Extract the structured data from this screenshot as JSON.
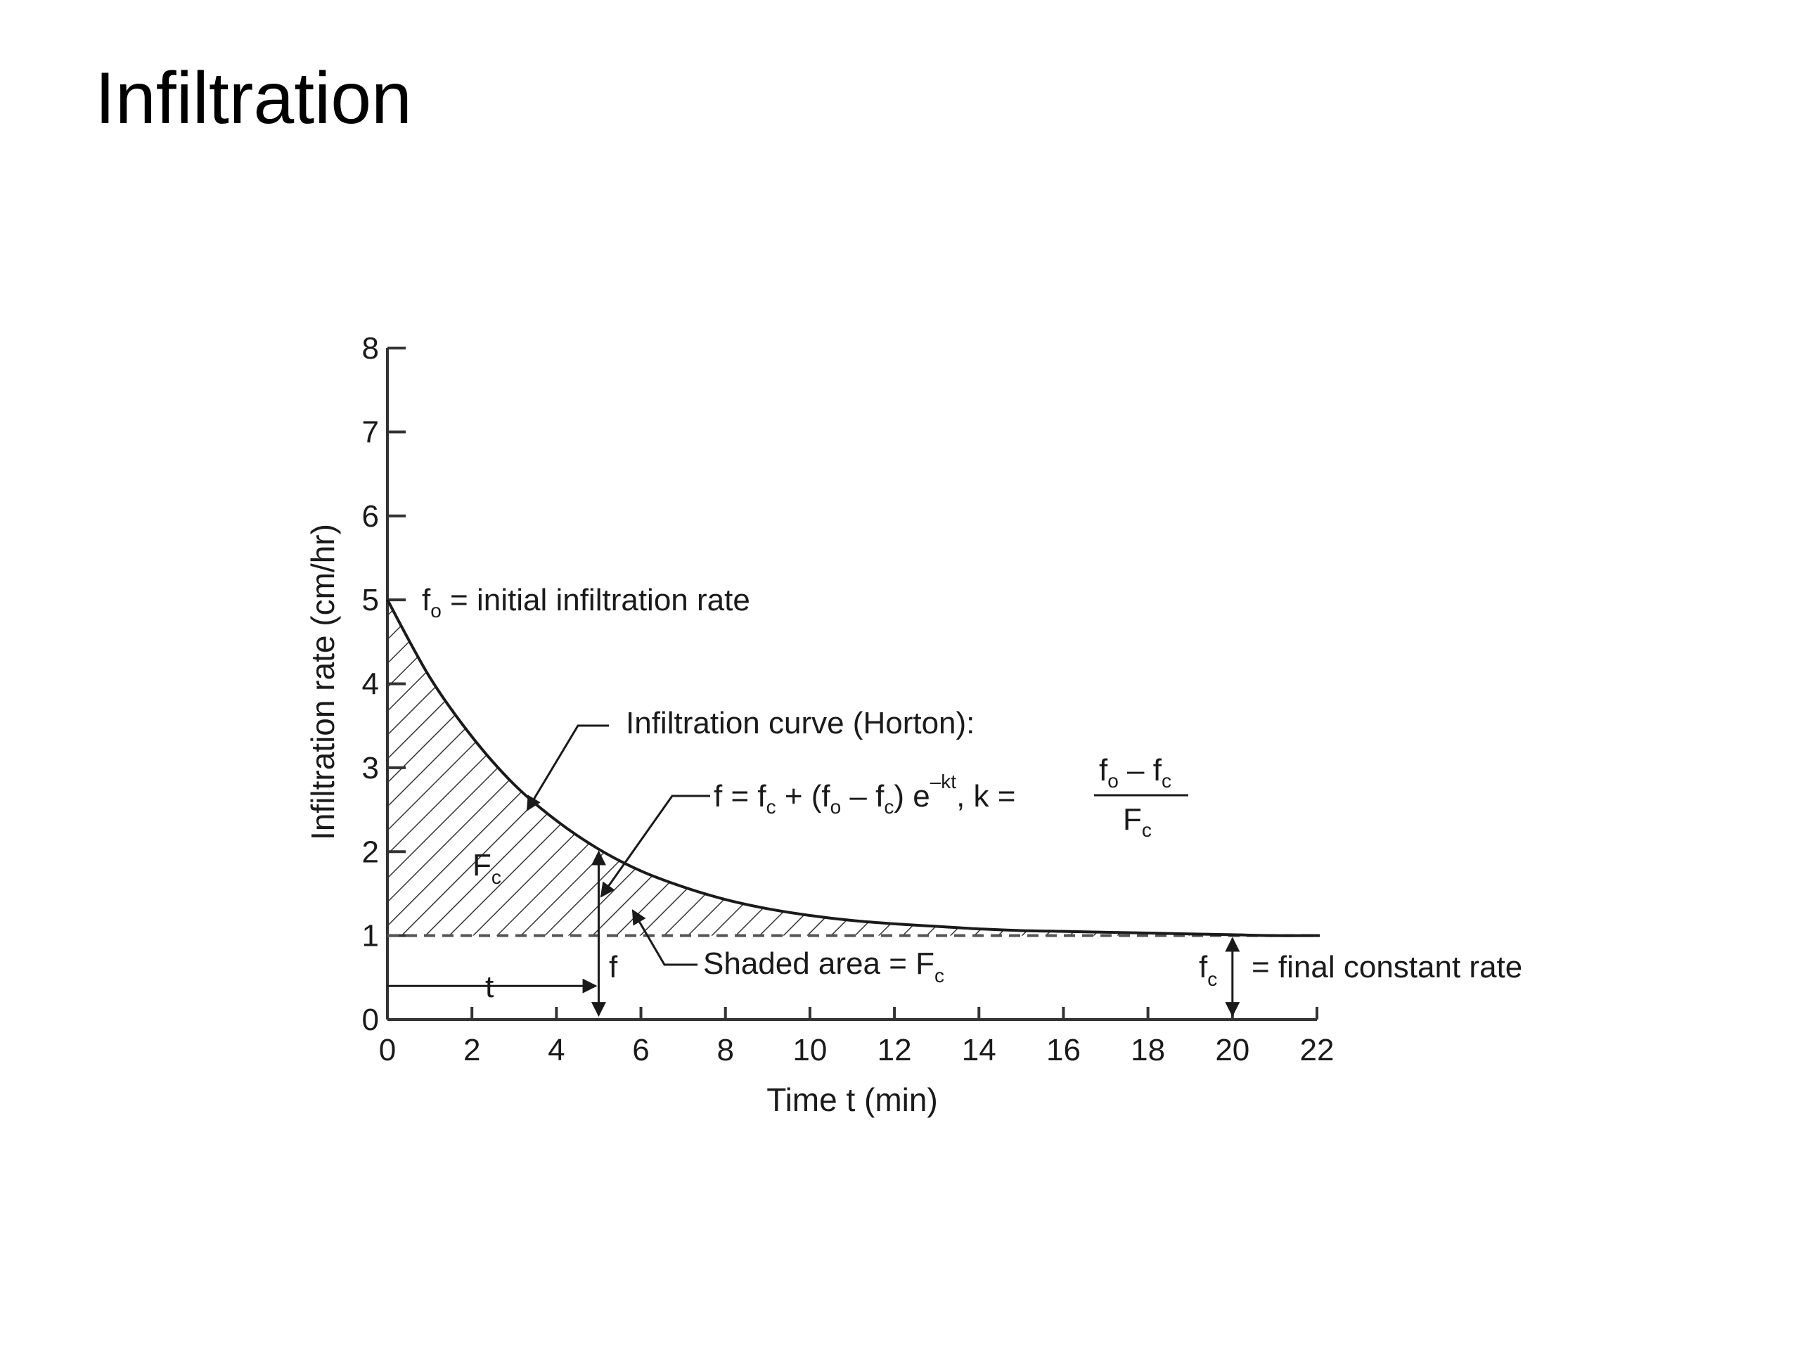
{
  "slide": {
    "title": "Infiltration"
  },
  "chart_data": {
    "type": "line",
    "title": "",
    "xlabel": "Time t (min)",
    "ylabel": "Infiltration rate (cm/hr)",
    "xlim": [
      0,
      22
    ],
    "ylim": [
      0,
      8
    ],
    "xticks": [
      0,
      2,
      4,
      6,
      8,
      10,
      12,
      14,
      16,
      18,
      20,
      22
    ],
    "yticks": [
      0,
      1,
      2,
      3,
      4,
      5,
      6,
      7,
      8
    ],
    "grid": false,
    "series": [
      {
        "x": [
          0,
          1,
          2,
          3,
          4,
          5,
          6,
          7,
          8,
          9,
          10,
          11,
          12,
          13,
          14,
          15,
          16,
          17,
          18,
          19,
          20,
          21,
          22
        ],
        "y": [
          5.0,
          4.08,
          3.37,
          2.8,
          2.37,
          2.03,
          1.77,
          1.58,
          1.43,
          1.32,
          1.24,
          1.18,
          1.14,
          1.11,
          1.08,
          1.06,
          1.05,
          1.04,
          1.03,
          1.02,
          1.01,
          1.0,
          1.0
        ]
      }
    ],
    "reference_lines": [
      {
        "y": 1.0,
        "style": "dashed"
      }
    ],
    "shaded_region": {
      "between": "curve and y=1",
      "pattern": "hatched"
    },
    "markers": {
      "t_value": 5,
      "f_value": 2.03,
      "fc_value": 1.0,
      "fc_at_x": 20,
      "t_arrow_y": 0.4
    },
    "annotations": {
      "fo_label": {
        "main": "f",
        "sub": "o",
        "rest": " = initial infiltration rate"
      },
      "curve_label": "Infiltration curve (Horton):",
      "equation": {
        "f": "f = f",
        "c1": "c",
        "plus": " + (f",
        "o1": "o",
        "minus": " – f",
        "c2": "c",
        "close": ") e",
        "exp": "–kt",
        "k": ", k =",
        "num_f1": "f",
        "num_o": "o",
        "num_minus": " – f",
        "num_c": "c",
        "den_F": "F",
        "den_c": "c"
      },
      "Fc_label": {
        "main": "F",
        "sub": "c"
      },
      "shaded_label": {
        "main": "Shaded area = F",
        "sub": "c"
      },
      "f_label": "f",
      "t_label": "t",
      "fc_label": {
        "main": "f",
        "sub": "c",
        "rest": "= final constant rate"
      }
    }
  }
}
